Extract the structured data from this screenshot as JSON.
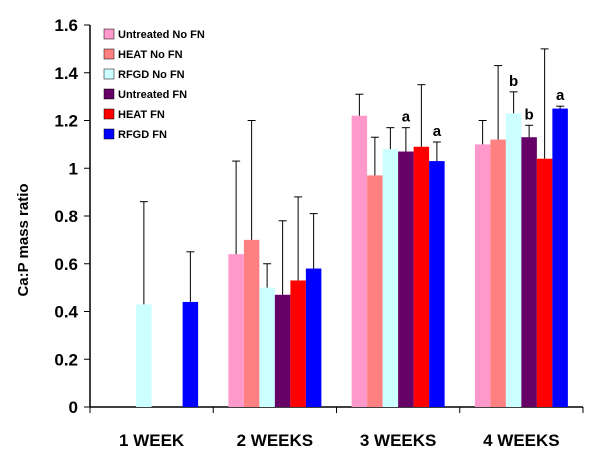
{
  "chart_data": {
    "type": "bar",
    "title": "",
    "xlabel": "",
    "ylabel": "Ca:P mass ratio",
    "ylim": [
      0,
      1.6
    ],
    "yticks": [
      0,
      0.2,
      0.4,
      0.6,
      0.8,
      1,
      1.2,
      1.4,
      1.6
    ],
    "grid": false,
    "legend_position": "top-left",
    "categories": [
      "1 WEEK",
      "2 WEEKS",
      "3 WEEKS",
      "4 WEEKS"
    ],
    "series": [
      {
        "name": "Untreated No FN",
        "color": "#FF99CC",
        "values": [
          null,
          0.64,
          1.22,
          1.1
        ],
        "errors": [
          null,
          0.39,
          0.09,
          0.1
        ],
        "annotations": [
          null,
          null,
          null,
          null
        ]
      },
      {
        "name": "HEAT No FN",
        "color": "#FF8080",
        "values": [
          null,
          0.7,
          0.97,
          1.12
        ],
        "errors": [
          null,
          0.5,
          0.16,
          0.31
        ],
        "annotations": [
          null,
          null,
          null,
          null
        ]
      },
      {
        "name": "RFGD No FN",
        "color": "#CCFFFF",
        "values": [
          0.43,
          0.5,
          1.08,
          1.23
        ],
        "errors": [
          0.43,
          0.1,
          0.09,
          0.09
        ],
        "annotations": [
          null,
          null,
          null,
          "b"
        ]
      },
      {
        "name": "Untreated FN",
        "color": "#660066",
        "values": [
          null,
          0.47,
          1.07,
          1.13
        ],
        "errors": [
          null,
          0.31,
          0.1,
          0.05
        ],
        "annotations": [
          null,
          null,
          "a",
          "b"
        ]
      },
      {
        "name": "HEAT FN",
        "color": "#FF0000",
        "values": [
          null,
          0.53,
          1.09,
          1.04
        ],
        "errors": [
          null,
          0.35,
          0.26,
          0.46
        ],
        "annotations": [
          null,
          null,
          null,
          null
        ]
      },
      {
        "name": "RFGD FN",
        "color": "#0000FF",
        "values": [
          0.44,
          0.58,
          1.03,
          1.25
        ],
        "errors": [
          0.21,
          0.23,
          0.08,
          0.01
        ],
        "annotations": [
          null,
          null,
          "a",
          "a"
        ]
      }
    ]
  }
}
